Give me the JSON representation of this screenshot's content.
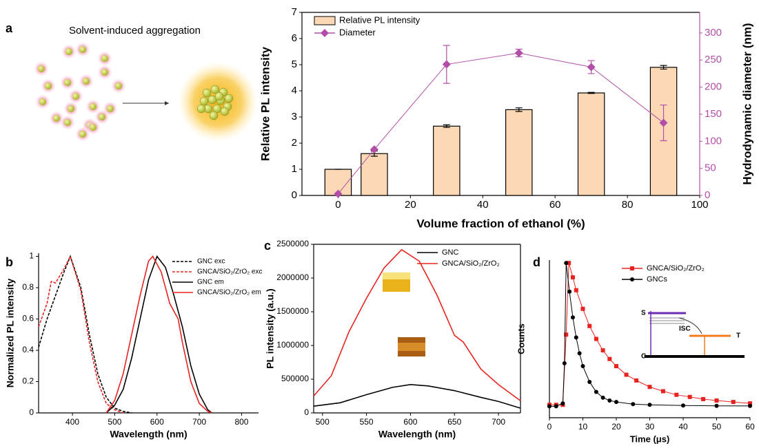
{
  "diagram": {
    "panel": "a",
    "title": "Solvent-induced aggregation"
  },
  "chart_data": [
    {
      "type": "bar",
      "xlabel": "Volume fraction of ethanol (%)",
      "ylabel": "Relative PL intensity",
      "y2label": "Hydrodynamic diameter (nm)",
      "x": [
        0,
        10,
        30,
        50,
        70,
        90
      ],
      "xlim": [
        -10,
        100
      ],
      "xticks": [
        0,
        20,
        40,
        60,
        80,
        100
      ],
      "ylim": [
        0,
        7
      ],
      "yticks": [
        0,
        1,
        2,
        3,
        4,
        5,
        6,
        7
      ],
      "y2lim": [
        0,
        338
      ],
      "y2ticks": [
        0,
        50,
        100,
        150,
        200,
        250,
        300
      ],
      "legend": "upper left",
      "box": true,
      "series": [
        {
          "name": "Relative PL intensity",
          "type": "bar",
          "color": "#fcd9b4",
          "values": [
            1,
            1.6,
            2.65,
            3.28,
            3.92,
            4.9
          ],
          "errors": [
            0,
            0.1,
            0.05,
            0.07,
            0.02,
            0.07
          ]
        },
        {
          "name": "Diameter",
          "type": "line",
          "axis": "y2",
          "marker": "diamond",
          "color": "#b34fa8",
          "values": [
            3,
            85,
            242,
            263,
            237,
            134
          ],
          "errors": [
            0,
            0,
            35,
            7,
            12,
            33
          ]
        }
      ]
    },
    {
      "type": "line",
      "panel": "b",
      "xlabel": "Wavelength (nm)",
      "ylabel": "Normalized PL intensity",
      "xlim": [
        320,
        840
      ],
      "xticks": [
        400,
        500,
        600,
        700,
        800
      ],
      "ylim": [
        0,
        1.02
      ],
      "yticks": [
        0,
        0.2,
        0.4,
        0.6,
        0.8,
        1
      ],
      "legend": "upper right",
      "box": false,
      "series": [
        {
          "name": "GNC exc",
          "color": "#000000",
          "dash": true,
          "x": [
            320,
            340,
            360,
            380,
            395,
            420,
            440,
            460,
            480,
            500,
            520,
            540
          ],
          "values": [
            0.42,
            0.6,
            0.75,
            0.9,
            1.0,
            0.8,
            0.5,
            0.25,
            0.1,
            0.03,
            0.01,
            0
          ]
        },
        {
          "name": "GNCA/SiO₂/ZrO₂ exc",
          "color": "#e8231f",
          "dash": true,
          "x": [
            320,
            340,
            350,
            360,
            380,
            395,
            420,
            440,
            460,
            480,
            500,
            520
          ],
          "values": [
            0.55,
            0.7,
            0.84,
            0.83,
            0.92,
            1.0,
            0.78,
            0.45,
            0.2,
            0.06,
            0.02,
            0
          ]
        },
        {
          "name": "GNC em",
          "color": "#000000",
          "x": [
            480,
            500,
            520,
            540,
            560,
            580,
            600,
            620,
            640,
            660,
            680,
            700,
            720,
            730
          ],
          "values": [
            0,
            0.05,
            0.15,
            0.35,
            0.6,
            0.85,
            1.0,
            0.93,
            0.75,
            0.55,
            0.3,
            0.12,
            0.02,
            0
          ]
        },
        {
          "name": "GNCA/SiO₂/ZrO₂ em",
          "color": "#e8231f",
          "x": [
            480,
            500,
            520,
            540,
            560,
            580,
            590,
            610,
            630,
            650,
            660,
            680,
            700,
            720,
            730
          ],
          "values": [
            0,
            0.08,
            0.25,
            0.5,
            0.75,
            0.97,
            1.0,
            0.9,
            0.7,
            0.6,
            0.45,
            0.2,
            0.06,
            0.01,
            0
          ]
        }
      ]
    },
    {
      "type": "line",
      "panel": "c",
      "xlabel": "Wavelength (nm)",
      "ylabel": "PL intensity (a.u.)",
      "xlim": [
        490,
        725
      ],
      "xticks": [
        500,
        550,
        600,
        650,
        700
      ],
      "ylim": [
        0,
        2500000
      ],
      "yticks": [
        0,
        500000,
        1000000,
        1500000,
        2000000,
        2500000
      ],
      "legend": "upper right",
      "box": true,
      "series": [
        {
          "name": "GNC",
          "color": "#000000",
          "x": [
            490,
            520,
            550,
            580,
            600,
            620,
            650,
            680,
            700,
            725
          ],
          "values": [
            100000,
            150000,
            270000,
            380000,
            420000,
            400000,
            330000,
            230000,
            170000,
            70000
          ]
        },
        {
          "name": "GNCA/SiO₂/ZrO₂",
          "color": "#e8231f",
          "x": [
            490,
            510,
            530,
            550,
            570,
            590,
            610,
            630,
            650,
            660,
            680,
            700,
            725
          ],
          "values": [
            250000,
            550000,
            1200000,
            1700000,
            2150000,
            2420000,
            2250000,
            1750000,
            1150000,
            1050000,
            650000,
            420000,
            180000
          ]
        }
      ]
    },
    {
      "type": "line",
      "panel": "d",
      "xlabel": "Time (μs)",
      "ylabel": "Counts",
      "xlim": [
        0,
        60
      ],
      "xticks": [
        0,
        10,
        20,
        30,
        40,
        50,
        60
      ],
      "ylim": [
        -0.08,
        1.02
      ],
      "legend": "upper center",
      "box": false,
      "annotations": [
        "S",
        "ISC",
        "T",
        "G"
      ],
      "series": [
        {
          "name": "GNCA/SiO₂/ZrO₂",
          "color": "#e8231f",
          "marker": "square",
          "x": [
            0,
            2,
            4,
            5,
            5.8,
            7,
            8,
            10,
            12,
            14,
            16,
            18,
            20,
            23,
            26,
            30,
            34,
            38,
            42,
            46,
            50,
            55,
            60
          ],
          "values": [
            0.01,
            0.01,
            0.01,
            0.5,
            1.0,
            0.9,
            0.81,
            0.68,
            0.56,
            0.47,
            0.39,
            0.33,
            0.28,
            0.22,
            0.18,
            0.135,
            0.105,
            0.08,
            0.065,
            0.05,
            0.04,
            0.03,
            0.02
          ]
        },
        {
          "name": "GNCs",
          "color": "#000000",
          "marker": "circle",
          "x": [
            0,
            2,
            4,
            4.5,
            5,
            6,
            7,
            8,
            9,
            10,
            12,
            14,
            16,
            18,
            20,
            25,
            30,
            40,
            50,
            60
          ],
          "values": [
            0,
            0,
            0.02,
            0.3,
            1.0,
            0.8,
            0.62,
            0.48,
            0.37,
            0.28,
            0.17,
            0.1,
            0.06,
            0.04,
            0.03,
            0.015,
            0.01,
            0.005,
            0.003,
            0.002
          ]
        }
      ]
    }
  ]
}
